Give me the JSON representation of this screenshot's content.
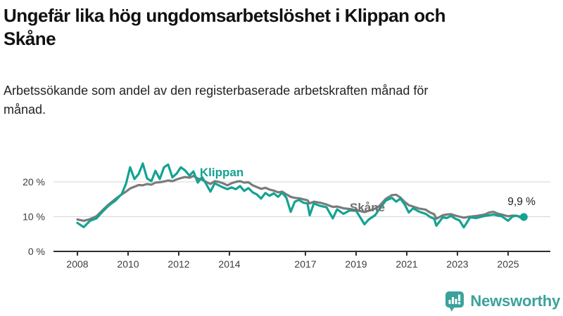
{
  "header": {
    "title": "Ungefär lika hög ungdomsarbetslöshet i Klippan och Skåne",
    "subtitle": "Arbetssökande som andel av den registerbaserade arbetskraften månad för månad."
  },
  "footer": {
    "brand": "Newsworthy",
    "brand_color": "#3ba29a",
    "logo_icon": "speech-bubble-bar-chart-exclamation"
  },
  "colors": {
    "klippan": "#13a392",
    "skane": "#7b7b7b",
    "gridline": "#dcdcdc",
    "axis": "#2e2e2e",
    "annotation": "#1f1f1f"
  },
  "chart_data": {
    "type": "line",
    "title": "Ungefär lika hög ungdomsarbetslöshet i Klippan och Skåne",
    "xlabel": "",
    "ylabel": "",
    "ylim": [
      0,
      26
    ],
    "xlim": [
      2007.9,
      2025.8
    ],
    "grid": "horizontal",
    "legend_position": "inline-labels",
    "yticks": [
      {
        "value": 0,
        "label": "0 %"
      },
      {
        "value": 10,
        "label": "10 %"
      },
      {
        "value": 20,
        "label": "20 %"
      }
    ],
    "xticks": [
      {
        "value": 2008,
        "label": "2008"
      },
      {
        "value": 2010,
        "label": "2010"
      },
      {
        "value": 2012,
        "label": "2012"
      },
      {
        "value": 2014,
        "label": "2014"
      },
      {
        "value": 2017,
        "label": "2017"
      },
      {
        "value": 2019,
        "label": "2019"
      },
      {
        "value": 2021,
        "label": "2021"
      },
      {
        "value": 2023,
        "label": "2023"
      },
      {
        "value": 2025,
        "label": "2025"
      }
    ],
    "series": [
      {
        "name": "Skåne",
        "color": "#7b7b7b",
        "points": [
          [
            2008.0,
            9.2
          ],
          [
            2008.25,
            8.8
          ],
          [
            2008.5,
            9.3
          ],
          [
            2008.75,
            10.1
          ],
          [
            2009.0,
            11.9
          ],
          [
            2009.25,
            13.6
          ],
          [
            2009.5,
            15.1
          ],
          [
            2009.75,
            16.4
          ],
          [
            2009.92,
            17.2
          ],
          [
            2010.08,
            18.1
          ],
          [
            2010.25,
            18.6
          ],
          [
            2010.42,
            19.1
          ],
          [
            2010.58,
            19.0
          ],
          [
            2010.75,
            19.4
          ],
          [
            2010.92,
            19.2
          ],
          [
            2011.08,
            19.8
          ],
          [
            2011.25,
            19.9
          ],
          [
            2011.42,
            20.1
          ],
          [
            2011.58,
            20.4
          ],
          [
            2011.75,
            20.2
          ],
          [
            2011.92,
            20.7
          ],
          [
            2012.08,
            21.1
          ],
          [
            2012.25,
            21.4
          ],
          [
            2012.42,
            21.2
          ],
          [
            2012.58,
            21.7
          ],
          [
            2012.75,
            21.0
          ],
          [
            2012.92,
            20.6
          ],
          [
            2013.08,
            20.0
          ],
          [
            2013.25,
            19.4
          ],
          [
            2013.42,
            20.2
          ],
          [
            2013.58,
            20.0
          ],
          [
            2013.75,
            19.6
          ],
          [
            2013.92,
            19.0
          ],
          [
            2014.08,
            19.6
          ],
          [
            2014.25,
            20.0
          ],
          [
            2014.42,
            20.2
          ],
          [
            2014.58,
            19.8
          ],
          [
            2014.75,
            19.9
          ],
          [
            2014.92,
            19.0
          ],
          [
            2015.08,
            18.5
          ],
          [
            2015.25,
            18.0
          ],
          [
            2015.42,
            18.3
          ],
          [
            2015.58,
            17.8
          ],
          [
            2015.75,
            17.5
          ],
          [
            2015.92,
            17.0
          ],
          [
            2016.08,
            17.2
          ],
          [
            2016.25,
            16.4
          ],
          [
            2016.42,
            15.7
          ],
          [
            2016.58,
            15.4
          ],
          [
            2016.75,
            15.3
          ],
          [
            2016.92,
            15.0
          ],
          [
            2017.08,
            14.7
          ],
          [
            2017.17,
            13.8
          ],
          [
            2017.33,
            14.3
          ],
          [
            2017.58,
            14.0
          ],
          [
            2017.83,
            13.5
          ],
          [
            2018.08,
            12.8
          ],
          [
            2018.25,
            12.9
          ],
          [
            2018.5,
            12.4
          ],
          [
            2018.75,
            12.2
          ],
          [
            2019.0,
            11.9
          ],
          [
            2019.33,
            11.3
          ],
          [
            2019.5,
            11.7
          ],
          [
            2019.75,
            12.3
          ],
          [
            2019.92,
            13.1
          ],
          [
            2020.17,
            15.1
          ],
          [
            2020.42,
            16.2
          ],
          [
            2020.58,
            16.3
          ],
          [
            2020.75,
            15.5
          ],
          [
            2020.92,
            14.2
          ],
          [
            2021.08,
            13.3
          ],
          [
            2021.25,
            12.9
          ],
          [
            2021.5,
            12.3
          ],
          [
            2021.75,
            12.0
          ],
          [
            2021.92,
            11.2
          ],
          [
            2022.08,
            10.7
          ],
          [
            2022.17,
            9.4
          ],
          [
            2022.42,
            10.4
          ],
          [
            2022.58,
            10.6
          ],
          [
            2022.75,
            10.7
          ],
          [
            2022.92,
            10.3
          ],
          [
            2023.08,
            10.0
          ],
          [
            2023.25,
            9.7
          ],
          [
            2023.5,
            10.0
          ],
          [
            2023.75,
            10.2
          ],
          [
            2023.92,
            10.4
          ],
          [
            2024.08,
            10.6
          ],
          [
            2024.25,
            11.2
          ],
          [
            2024.42,
            11.4
          ],
          [
            2024.58,
            10.9
          ],
          [
            2024.75,
            10.6
          ],
          [
            2025.0,
            10.1
          ],
          [
            2025.17,
            10.3
          ],
          [
            2025.33,
            10.2
          ],
          [
            2025.5,
            10.0
          ],
          [
            2025.62,
            10.0
          ]
        ]
      },
      {
        "name": "Klippan",
        "color": "#13a392",
        "points": [
          [
            2008.0,
            8.2
          ],
          [
            2008.25,
            7.0
          ],
          [
            2008.5,
            8.8
          ],
          [
            2008.75,
            9.5
          ],
          [
            2009.0,
            11.5
          ],
          [
            2009.25,
            13.3
          ],
          [
            2009.5,
            14.6
          ],
          [
            2009.75,
            16.5
          ],
          [
            2009.92,
            19.5
          ],
          [
            2010.08,
            24.2
          ],
          [
            2010.25,
            20.8
          ],
          [
            2010.42,
            22.3
          ],
          [
            2010.58,
            25.3
          ],
          [
            2010.75,
            21.0
          ],
          [
            2010.92,
            20.2
          ],
          [
            2011.08,
            23.2
          ],
          [
            2011.25,
            20.8
          ],
          [
            2011.42,
            24.2
          ],
          [
            2011.58,
            25.0
          ],
          [
            2011.75,
            21.3
          ],
          [
            2011.92,
            22.4
          ],
          [
            2012.08,
            24.2
          ],
          [
            2012.25,
            23.3
          ],
          [
            2012.42,
            21.8
          ],
          [
            2012.58,
            23.0
          ],
          [
            2012.75,
            19.8
          ],
          [
            2012.92,
            21.4
          ],
          [
            2013.08,
            19.4
          ],
          [
            2013.25,
            17.2
          ],
          [
            2013.42,
            19.6
          ],
          [
            2013.58,
            19.0
          ],
          [
            2013.75,
            18.4
          ],
          [
            2013.92,
            17.9
          ],
          [
            2014.08,
            18.4
          ],
          [
            2014.25,
            17.9
          ],
          [
            2014.42,
            18.8
          ],
          [
            2014.58,
            17.4
          ],
          [
            2014.75,
            18.2
          ],
          [
            2014.92,
            17.0
          ],
          [
            2015.08,
            16.4
          ],
          [
            2015.25,
            15.2
          ],
          [
            2015.42,
            16.8
          ],
          [
            2015.58,
            16.0
          ],
          [
            2015.75,
            16.7
          ],
          [
            2015.92,
            15.7
          ],
          [
            2016.08,
            16.9
          ],
          [
            2016.25,
            15.4
          ],
          [
            2016.42,
            11.4
          ],
          [
            2016.58,
            14.3
          ],
          [
            2016.75,
            14.8
          ],
          [
            2016.92,
            14.0
          ],
          [
            2017.08,
            13.8
          ],
          [
            2017.17,
            10.4
          ],
          [
            2017.33,
            13.8
          ],
          [
            2017.58,
            13.1
          ],
          [
            2017.83,
            12.7
          ],
          [
            2018.08,
            9.5
          ],
          [
            2018.25,
            12.1
          ],
          [
            2018.5,
            10.8
          ],
          [
            2018.75,
            11.8
          ],
          [
            2019.0,
            11.7
          ],
          [
            2019.33,
            7.8
          ],
          [
            2019.5,
            9.2
          ],
          [
            2019.75,
            10.4
          ],
          [
            2019.92,
            12.2
          ],
          [
            2020.17,
            14.6
          ],
          [
            2020.42,
            15.4
          ],
          [
            2020.58,
            14.3
          ],
          [
            2020.75,
            15.2
          ],
          [
            2020.92,
            13.5
          ],
          [
            2021.08,
            11.2
          ],
          [
            2021.25,
            12.4
          ],
          [
            2021.5,
            11.4
          ],
          [
            2021.75,
            10.8
          ],
          [
            2021.92,
            9.9
          ],
          [
            2022.08,
            9.4
          ],
          [
            2022.17,
            7.4
          ],
          [
            2022.42,
            9.8
          ],
          [
            2022.58,
            9.6
          ],
          [
            2022.75,
            10.2
          ],
          [
            2022.92,
            9.4
          ],
          [
            2023.08,
            8.9
          ],
          [
            2023.25,
            6.9
          ],
          [
            2023.5,
            9.8
          ],
          [
            2023.75,
            9.6
          ],
          [
            2023.92,
            9.9
          ],
          [
            2024.08,
            10.2
          ],
          [
            2024.25,
            10.4
          ],
          [
            2024.42,
            10.6
          ],
          [
            2024.58,
            10.3
          ],
          [
            2024.75,
            10.1
          ],
          [
            2025.0,
            8.8
          ],
          [
            2025.17,
            10.0
          ],
          [
            2025.33,
            10.3
          ],
          [
            2025.5,
            9.7
          ],
          [
            2025.62,
            9.9
          ]
        ]
      }
    ],
    "series_labels": [
      {
        "text": "Klippan",
        "color": "#13a392",
        "x": 2012.83,
        "y": 21.6,
        "anchor": "start"
      },
      {
        "text": "Skåne",
        "color": "#6f6f6f",
        "x": 2018.75,
        "y": 11.5,
        "anchor": "start"
      }
    ],
    "end_dot": {
      "series": "Klippan",
      "x": 2025.62,
      "y": 9.9,
      "color": "#13a392"
    },
    "end_value_label": {
      "text": "9,9 %",
      "x": 2024.98,
      "y": 13.3,
      "anchor": "start"
    }
  }
}
